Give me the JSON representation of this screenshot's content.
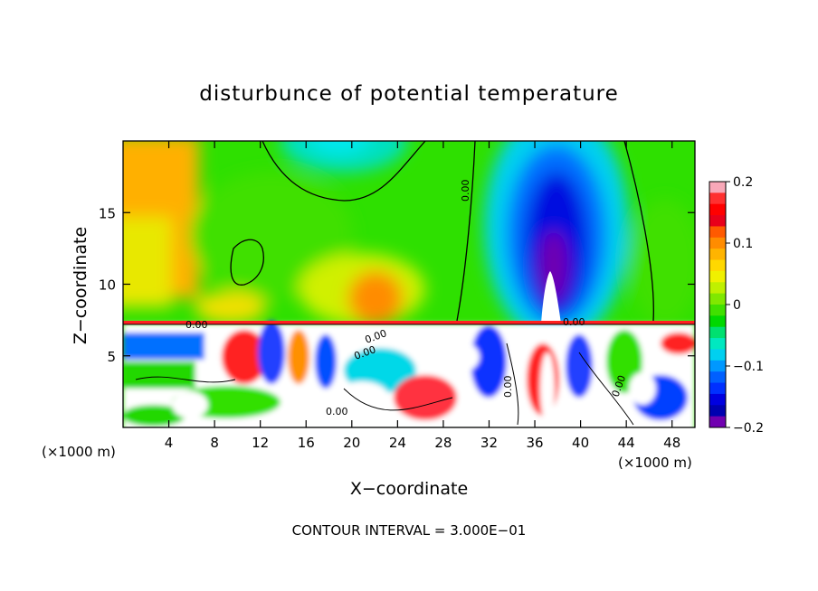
{
  "chart_data": {
    "type": "heatmap",
    "title": "disturbunce of potential temperature",
    "xlabel": "X−coordinate",
    "ylabel": "Z−coordinate",
    "x_unit_left": "(×1000 m)",
    "x_unit_right": "(×1000 m)",
    "xlim": [
      0,
      50
    ],
    "ylim": [
      0,
      20
    ],
    "x_ticks": [
      4,
      8,
      12,
      16,
      20,
      24,
      28,
      32,
      36,
      40,
      44,
      48
    ],
    "x_tick_labels": [
      "4",
      "8",
      "12",
      "16",
      "20",
      "24",
      "28",
      "32",
      "36",
      "40",
      "44",
      "48"
    ],
    "y_ticks": [
      5,
      10,
      15
    ],
    "y_tick_labels": [
      "5",
      "10",
      "15"
    ],
    "colorbar": {
      "min": -0.2,
      "max": 0.2,
      "ticks": [
        0.2,
        0.1,
        0,
        -0.1,
        -0.2
      ],
      "tick_labels": [
        "0.2",
        "0.1",
        "0",
        "−0.1",
        "−0.2"
      ],
      "colors": [
        "#f8a8b8",
        "#ff3030",
        "#ff0000",
        "#e8001a",
        "#ff5a00",
        "#ff8c00",
        "#ffb400",
        "#ffd800",
        "#f0f000",
        "#c0f000",
        "#80e800",
        "#40e000",
        "#00d800",
        "#00e070",
        "#00e8c0",
        "#00d0f0",
        "#0098ff",
        "#0060ff",
        "#0030ff",
        "#0000e0",
        "#0000b0",
        "#7000b0"
      ]
    },
    "contour_labels": [
      "0.00",
      "0.00",
      "0.00",
      "0.00",
      "0.00",
      "0.00",
      "0.00",
      "0.00"
    ],
    "field_regions": [
      {
        "x": [
          0,
          8
        ],
        "z": [
          10,
          20
        ],
        "value": 0.1
      },
      {
        "x": [
          8,
          30
        ],
        "z": [
          8,
          20
        ],
        "value": 0.02
      },
      {
        "x": [
          15,
          25
        ],
        "z": [
          17,
          20
        ],
        "value": -0.07
      },
      {
        "x": [
          18,
          24
        ],
        "z": [
          7.5,
          11
        ],
        "value": 0.09
      },
      {
        "x": [
          33,
          44
        ],
        "z": [
          8,
          20
        ],
        "value": -0.16
      },
      {
        "x": [
          37,
          40
        ],
        "z": [
          9,
          15
        ],
        "value": -0.2
      },
      {
        "x": [
          0,
          50
        ],
        "z": [
          0,
          7.2
        ],
        "value": 0.0
      }
    ],
    "footer": "CONTOUR INTERVAL = 3.000E−01"
  }
}
